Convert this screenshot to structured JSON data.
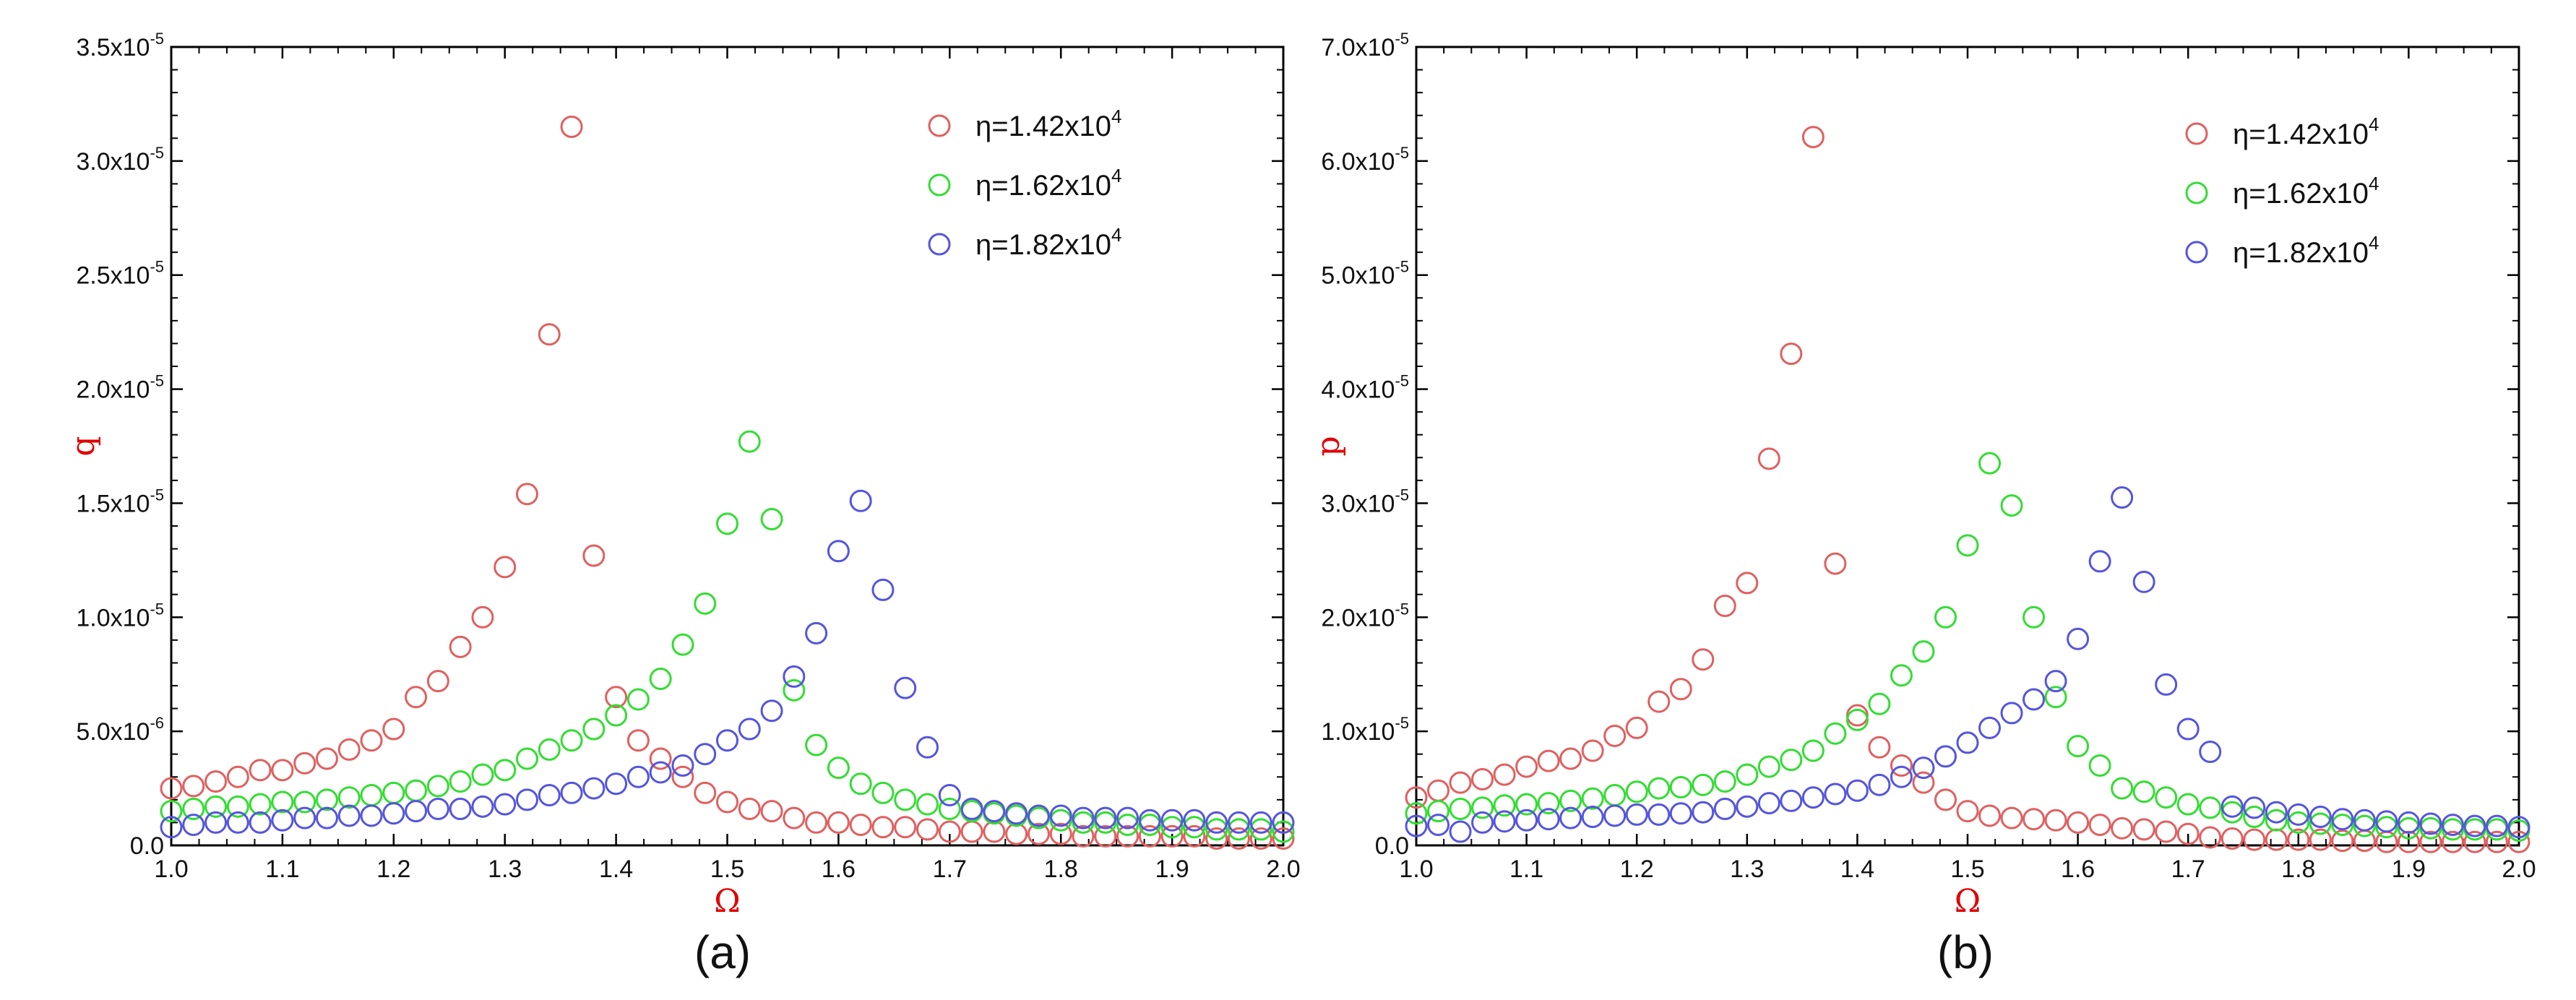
{
  "chart_data": [
    {
      "type": "scatter",
      "panel_label": "(a)",
      "xlabel": "Ω",
      "ylabel": "q",
      "xlim": [
        1.0,
        2.0
      ],
      "ylim": [
        0,
        3.5e-05
      ],
      "x_ticks": [
        1.0,
        1.1,
        1.2,
        1.3,
        1.4,
        1.5,
        1.6,
        1.7,
        1.8,
        1.9,
        2.0
      ],
      "x_tick_labels": [
        "1.0",
        "1.1",
        "1.2",
        "1.3",
        "1.4",
        "1.5",
        "1.6",
        "1.7",
        "1.8",
        "1.9",
        "2.0"
      ],
      "y_ticks": [
        0,
        5e-06,
        1e-05,
        1.5e-05,
        2e-05,
        2.5e-05,
        3e-05,
        3.5e-05
      ],
      "y_tick_labels": [
        {
          "base": "0.0",
          "exp": ""
        },
        {
          "base": "5.0x10",
          "exp": "-6"
        },
        {
          "base": "1.0x10",
          "exp": "-5"
        },
        {
          "base": "1.5x10",
          "exp": "-5"
        },
        {
          "base": "2.0x10",
          "exp": "-5"
        },
        {
          "base": "2.5x10",
          "exp": "-5"
        },
        {
          "base": "3.0x10",
          "exp": "-5"
        },
        {
          "base": "3.5x10",
          "exp": "-5"
        }
      ],
      "legend_position": "top-right",
      "x": [
        1.0,
        1.02,
        1.04,
        1.06,
        1.08,
        1.1,
        1.12,
        1.14,
        1.16,
        1.18,
        1.2,
        1.22,
        1.24,
        1.26,
        1.28,
        1.3,
        1.32,
        1.34,
        1.36,
        1.38,
        1.4,
        1.42,
        1.44,
        1.46,
        1.48,
        1.5,
        1.52,
        1.54,
        1.56,
        1.58,
        1.6,
        1.62,
        1.64,
        1.66,
        1.68,
        1.7,
        1.72,
        1.74,
        1.76,
        1.78,
        1.8,
        1.82,
        1.84,
        1.86,
        1.88,
        1.9,
        1.92,
        1.94,
        1.96,
        1.98,
        2.0
      ],
      "series": [
        {
          "name": "η=1.42x10^4",
          "label_base": "η=1.42x10",
          "label_exp": "4",
          "color": "#e06060",
          "values": [
            2.5e-06,
            2.6e-06,
            2.8e-06,
            3e-06,
            3.3e-06,
            3.3e-06,
            3.6e-06,
            3.8e-06,
            4.2e-06,
            4.6e-06,
            5.1e-06,
            6.5e-06,
            7.2e-06,
            8.7e-06,
            1e-05,
            1.22e-05,
            1.54e-05,
            2.24e-05,
            3.15e-05,
            1.27e-05,
            6.5e-06,
            4.6e-06,
            3.8e-06,
            3e-06,
            2.3e-06,
            1.9e-06,
            1.6e-06,
            1.5e-06,
            1.2e-06,
            1e-06,
            1e-06,
            9e-07,
            8e-07,
            8e-07,
            7e-07,
            6e-07,
            6e-07,
            6e-07,
            5e-07,
            5e-07,
            5e-07,
            4e-07,
            4e-07,
            4e-07,
            4e-07,
            4e-07,
            4e-07,
            3e-07,
            3e-07,
            3e-07,
            3e-07
          ]
        },
        {
          "name": "η=1.62x10^4",
          "label_base": "η=1.62x10",
          "label_exp": "4",
          "color": "#33dd33",
          "values": [
            1.5e-06,
            1.6e-06,
            1.7e-06,
            1.7e-06,
            1.8e-06,
            1.9e-06,
            1.9e-06,
            2e-06,
            2.1e-06,
            2.2e-06,
            2.3e-06,
            2.4e-06,
            2.6e-06,
            2.8e-06,
            3.1e-06,
            3.3e-06,
            3.8e-06,
            4.2e-06,
            4.6e-06,
            5.1e-06,
            5.7e-06,
            6.4e-06,
            7.3e-06,
            8.8e-06,
            1.06e-05,
            1.41e-05,
            1.77e-05,
            1.43e-05,
            6.8e-06,
            4.4e-06,
            3.4e-06,
            2.7e-06,
            2.3e-06,
            2e-06,
            1.8e-06,
            1.6e-06,
            1.5e-06,
            1.4e-06,
            1.3e-06,
            1.2e-06,
            1.1e-06,
            1e-06,
            1e-06,
            9e-07,
            9e-07,
            8e-07,
            8e-07,
            7e-07,
            7e-07,
            7e-07,
            6e-07
          ]
        },
        {
          "name": "η=1.82x10^4",
          "label_base": "η=1.82x10",
          "label_exp": "4",
          "color": "#5555dd",
          "values": [
            8e-07,
            9e-07,
            1e-06,
            1e-06,
            1e-06,
            1.1e-06,
            1.2e-06,
            1.2e-06,
            1.3e-06,
            1.3e-06,
            1.4e-06,
            1.5e-06,
            1.6e-06,
            1.6e-06,
            1.7e-06,
            1.8e-06,
            2e-06,
            2.2e-06,
            2.3e-06,
            2.5e-06,
            2.7e-06,
            3e-06,
            3.2e-06,
            3.5e-06,
            4e-06,
            4.6e-06,
            5.1e-06,
            5.9e-06,
            7.4e-06,
            9.3e-06,
            1.29e-05,
            1.51e-05,
            1.12e-05,
            6.9e-06,
            4.3e-06,
            2.2e-06,
            1.6e-06,
            1.5e-06,
            1.4e-06,
            1.3e-06,
            1.3e-06,
            1.2e-06,
            1.2e-06,
            1.2e-06,
            1.1e-06,
            1.1e-06,
            1.1e-06,
            1e-06,
            1e-06,
            1e-06,
            1e-06
          ]
        }
      ]
    },
    {
      "type": "scatter",
      "panel_label": "(b)",
      "xlabel": "Ω",
      "ylabel": "p",
      "xlim": [
        1.0,
        2.0
      ],
      "ylim": [
        0,
        7e-05
      ],
      "x_ticks": [
        1.0,
        1.1,
        1.2,
        1.3,
        1.4,
        1.5,
        1.6,
        1.7,
        1.8,
        1.9,
        2.0
      ],
      "x_tick_labels": [
        "1.0",
        "1.1",
        "1.2",
        "1.3",
        "1.4",
        "1.5",
        "1.6",
        "1.7",
        "1.8",
        "1.9",
        "2.0"
      ],
      "y_ticks": [
        0,
        1e-05,
        2e-05,
        3e-05,
        4e-05,
        5e-05,
        6e-05,
        7e-05
      ],
      "y_tick_labels": [
        {
          "base": "0.0",
          "exp": ""
        },
        {
          "base": "1.0x10",
          "exp": "-5"
        },
        {
          "base": "2.0x10",
          "exp": "-5"
        },
        {
          "base": "3.0x10",
          "exp": "-5"
        },
        {
          "base": "4.0x10",
          "exp": "-5"
        },
        {
          "base": "5.0x10",
          "exp": "-5"
        },
        {
          "base": "6.0x10",
          "exp": "-5"
        },
        {
          "base": "7.0x10",
          "exp": "-5"
        }
      ],
      "legend_position": "top-right",
      "x": [
        1.0,
        1.02,
        1.04,
        1.06,
        1.08,
        1.1,
        1.12,
        1.14,
        1.16,
        1.18,
        1.2,
        1.22,
        1.24,
        1.26,
        1.28,
        1.3,
        1.32,
        1.34,
        1.36,
        1.38,
        1.4,
        1.42,
        1.44,
        1.46,
        1.48,
        1.5,
        1.52,
        1.54,
        1.56,
        1.58,
        1.6,
        1.62,
        1.64,
        1.66,
        1.68,
        1.7,
        1.72,
        1.74,
        1.76,
        1.78,
        1.8,
        1.82,
        1.84,
        1.86,
        1.88,
        1.9,
        1.92,
        1.94,
        1.96,
        1.98,
        2.0
      ],
      "series": [
        {
          "name": "η=1.42x10^4",
          "label_base": "η=1.42x10",
          "label_exp": "4",
          "color": "#e06060",
          "values": [
            4.2e-06,
            4.8e-06,
            5.5e-06,
            5.8e-06,
            6.2e-06,
            6.9e-06,
            7.4e-06,
            7.6e-06,
            8.3e-06,
            9.6e-06,
            1.03e-05,
            1.26e-05,
            1.37e-05,
            1.63e-05,
            2.1e-05,
            2.3e-05,
            3.39e-05,
            4.31e-05,
            6.21e-05,
            2.47e-05,
            1.14e-05,
            8.6e-06,
            7e-06,
            5.5e-06,
            4e-06,
            3e-06,
            2.6e-06,
            2.4e-06,
            2.3e-06,
            2.2e-06,
            2e-06,
            1.8e-06,
            1.5e-06,
            1.4e-06,
            1.2e-06,
            1e-06,
            7e-07,
            6e-07,
            5e-07,
            5e-07,
            5e-07,
            5e-07,
            4e-07,
            4e-07,
            3e-07,
            3e-07,
            3e-07,
            3e-07,
            3e-07,
            3e-07,
            3e-07
          ]
        },
        {
          "name": "η=1.62x10^4",
          "label_base": "η=1.62x10",
          "label_exp": "4",
          "color": "#33dd33",
          "values": [
            2.8e-06,
            3e-06,
            3.2e-06,
            3.3e-06,
            3.5e-06,
            3.6e-06,
            3.7e-06,
            3.9e-06,
            4.1e-06,
            4.4e-06,
            4.7e-06,
            5e-06,
            5.1e-06,
            5.3e-06,
            5.6e-06,
            6.2e-06,
            6.9e-06,
            7.5e-06,
            8.3e-06,
            9.8e-06,
            1.1e-05,
            1.24e-05,
            1.49e-05,
            1.7e-05,
            2e-05,
            2.63e-05,
            3.35e-05,
            2.98e-05,
            2e-05,
            1.3e-05,
            8.7e-06,
            7e-06,
            5e-06,
            4.7e-06,
            4.2e-06,
            3.6e-06,
            3.3e-06,
            2.9e-06,
            2.5e-06,
            2.2e-06,
            2e-06,
            1.9e-06,
            1.8e-06,
            1.7e-06,
            1.6e-06,
            1.5e-06,
            1.5e-06,
            1.4e-06,
            1.4e-06,
            1.4e-06,
            1.3e-06
          ]
        },
        {
          "name": "η=1.82x10^4",
          "label_base": "η=1.82x10",
          "label_exp": "4",
          "color": "#5555dd",
          "values": [
            1.7e-06,
            1.8e-06,
            1.2e-06,
            2e-06,
            2.1e-06,
            2.2e-06,
            2.3e-06,
            2.4e-06,
            2.5e-06,
            2.6e-06,
            2.7e-06,
            2.7e-06,
            2.8e-06,
            2.9e-06,
            3.2e-06,
            3.4e-06,
            3.7e-06,
            3.9e-06,
            4.2e-06,
            4.5e-06,
            4.8e-06,
            5.3e-06,
            6e-06,
            6.8e-06,
            7.8e-06,
            9e-06,
            1.03e-05,
            1.16e-05,
            1.28e-05,
            1.44e-05,
            1.81e-05,
            2.49e-05,
            3.05e-05,
            2.31e-05,
            1.41e-05,
            1.02e-05,
            8.2e-06,
            3.4e-06,
            3.3e-06,
            2.9e-06,
            2.7e-06,
            2.5e-06,
            2.3e-06,
            2.2e-06,
            2.1e-06,
            2e-06,
            1.9e-06,
            1.8e-06,
            1.7e-06,
            1.7e-06,
            1.6e-06
          ]
        }
      ]
    }
  ]
}
